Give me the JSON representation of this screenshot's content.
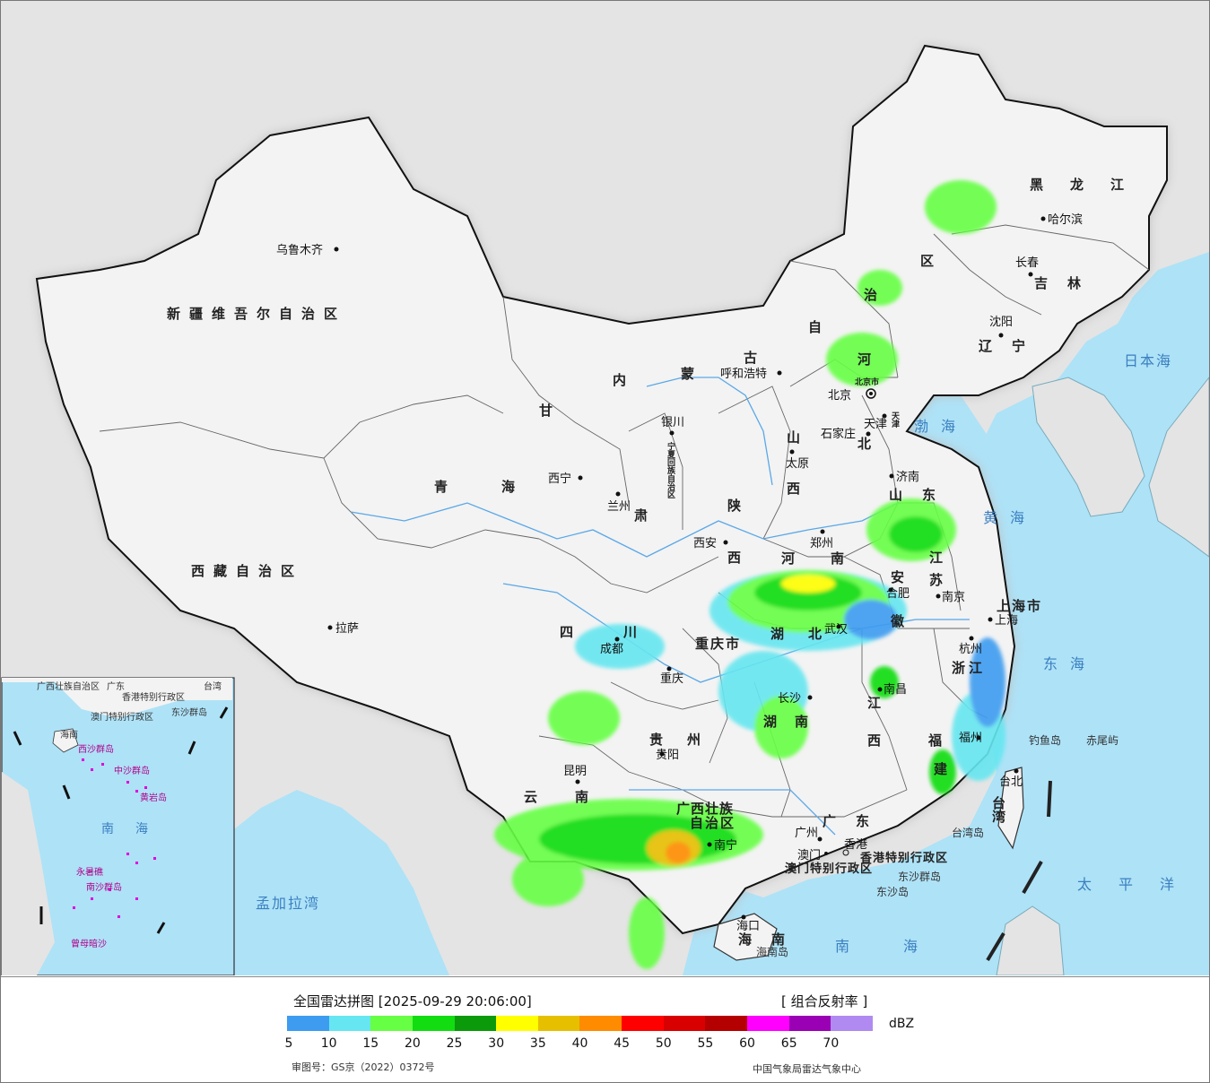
{
  "map": {
    "provinces": [
      {
        "name": "新疆维吾尔自治区"
      },
      {
        "name": "西藏自治区"
      },
      {
        "name": "青海"
      },
      {
        "name": "甘"
      },
      {
        "name": "肃"
      },
      {
        "name": "内"
      },
      {
        "name": "蒙"
      },
      {
        "name": "古"
      },
      {
        "name": "自"
      },
      {
        "name": "治"
      },
      {
        "name": "区"
      },
      {
        "name": "黑龙江"
      },
      {
        "name": "吉林"
      },
      {
        "name": "辽宁"
      },
      {
        "name": "河"
      },
      {
        "name": "北"
      },
      {
        "name": "山"
      },
      {
        "name": "西"
      },
      {
        "name": "陕"
      },
      {
        "name": "西"
      },
      {
        "name": "山东"
      },
      {
        "name": "河"
      },
      {
        "name": "南"
      },
      {
        "name": "江"
      },
      {
        "name": "苏"
      },
      {
        "name": "安"
      },
      {
        "name": "徽"
      },
      {
        "name": "上海市"
      },
      {
        "name": "浙江"
      },
      {
        "name": "湖"
      },
      {
        "name": "北"
      },
      {
        "name": "四"
      },
      {
        "name": "川"
      },
      {
        "name": "重庆市"
      },
      {
        "name": "湖"
      },
      {
        "name": "南"
      },
      {
        "name": "江"
      },
      {
        "name": "西"
      },
      {
        "name": "福"
      },
      {
        "name": "建"
      },
      {
        "name": "贵"
      },
      {
        "name": "州"
      },
      {
        "name": "云"
      },
      {
        "name": "南"
      },
      {
        "name": "广西壮族"
      },
      {
        "name": "自治区"
      },
      {
        "name": "广东"
      },
      {
        "name": "台湾"
      },
      {
        "name": "海南"
      },
      {
        "name": "宁夏回族自治区"
      },
      {
        "name": "香港特别行政区"
      },
      {
        "name": "澳门特别行政区"
      },
      {
        "name": "北京市"
      },
      {
        "name": "天津"
      }
    ],
    "cities": [
      {
        "name": "乌鲁木齐"
      },
      {
        "name": "拉萨"
      },
      {
        "name": "西宁"
      },
      {
        "name": "兰州"
      },
      {
        "name": "银川"
      },
      {
        "name": "呼和浩特"
      },
      {
        "name": "北京"
      },
      {
        "name": "天津"
      },
      {
        "name": "石家庄"
      },
      {
        "name": "太原"
      },
      {
        "name": "济南"
      },
      {
        "name": "郑州"
      },
      {
        "name": "西安"
      },
      {
        "name": "成都"
      },
      {
        "name": "重庆"
      },
      {
        "name": "武汉"
      },
      {
        "name": "合肥"
      },
      {
        "name": "南京"
      },
      {
        "name": "上海"
      },
      {
        "name": "杭州"
      },
      {
        "name": "南昌"
      },
      {
        "name": "长沙"
      },
      {
        "name": "贵阳"
      },
      {
        "name": "昆明"
      },
      {
        "name": "南宁"
      },
      {
        "name": "广州"
      },
      {
        "name": "澳门"
      },
      {
        "name": "香港"
      },
      {
        "name": "福州"
      },
      {
        "name": "台北"
      },
      {
        "name": "海口"
      },
      {
        "name": "哈尔滨"
      },
      {
        "name": "长春"
      },
      {
        "name": "沈阳"
      }
    ],
    "seas": [
      {
        "name": "日本海"
      },
      {
        "name": "渤海"
      },
      {
        "name": "黄海"
      },
      {
        "name": "东海"
      },
      {
        "name": "太平洋"
      },
      {
        "name": "南海"
      },
      {
        "name": "孟加拉湾"
      },
      {
        "name": "南海"
      }
    ],
    "islands": [
      {
        "name": "钓鱼岛"
      },
      {
        "name": "赤尾屿"
      },
      {
        "name": "台湾岛"
      },
      {
        "name": "东沙群岛"
      },
      {
        "name": "东沙岛"
      },
      {
        "name": "海南岛"
      }
    ],
    "inset": {
      "labels": [
        "广西壮族自治区",
        "广东",
        "香港特别行政区",
        "澳门特别行政区",
        "台湾",
        "东沙群岛",
        "海南",
        "西沙群岛",
        "中沙群岛",
        "黄岩岛",
        "南",
        "海",
        "永暑礁",
        "南沙群岛",
        "曾母暗沙"
      ]
    }
  },
  "legend": {
    "title": "全国雷达拼图 [2025-09-29 20:06:00]",
    "product": "[ 组合反射率 ]",
    "unit": "dBZ",
    "colors": [
      "#3d9cf0",
      "#66e6f0",
      "#66ff44",
      "#11dd11",
      "#0a9a0a",
      "#ffff00",
      "#e6c000",
      "#ff8c00",
      "#ff0000",
      "#d80000",
      "#b40000",
      "#ff00ff",
      "#9a00b4",
      "#b08af0"
    ],
    "ticks": [
      "5",
      "10",
      "15",
      "20",
      "25",
      "30",
      "35",
      "40",
      "45",
      "50",
      "55",
      "60",
      "65",
      "70"
    ],
    "approval": "审图号：GS京（2022）0372号",
    "org": "中国气象局雷达气象中心"
  }
}
